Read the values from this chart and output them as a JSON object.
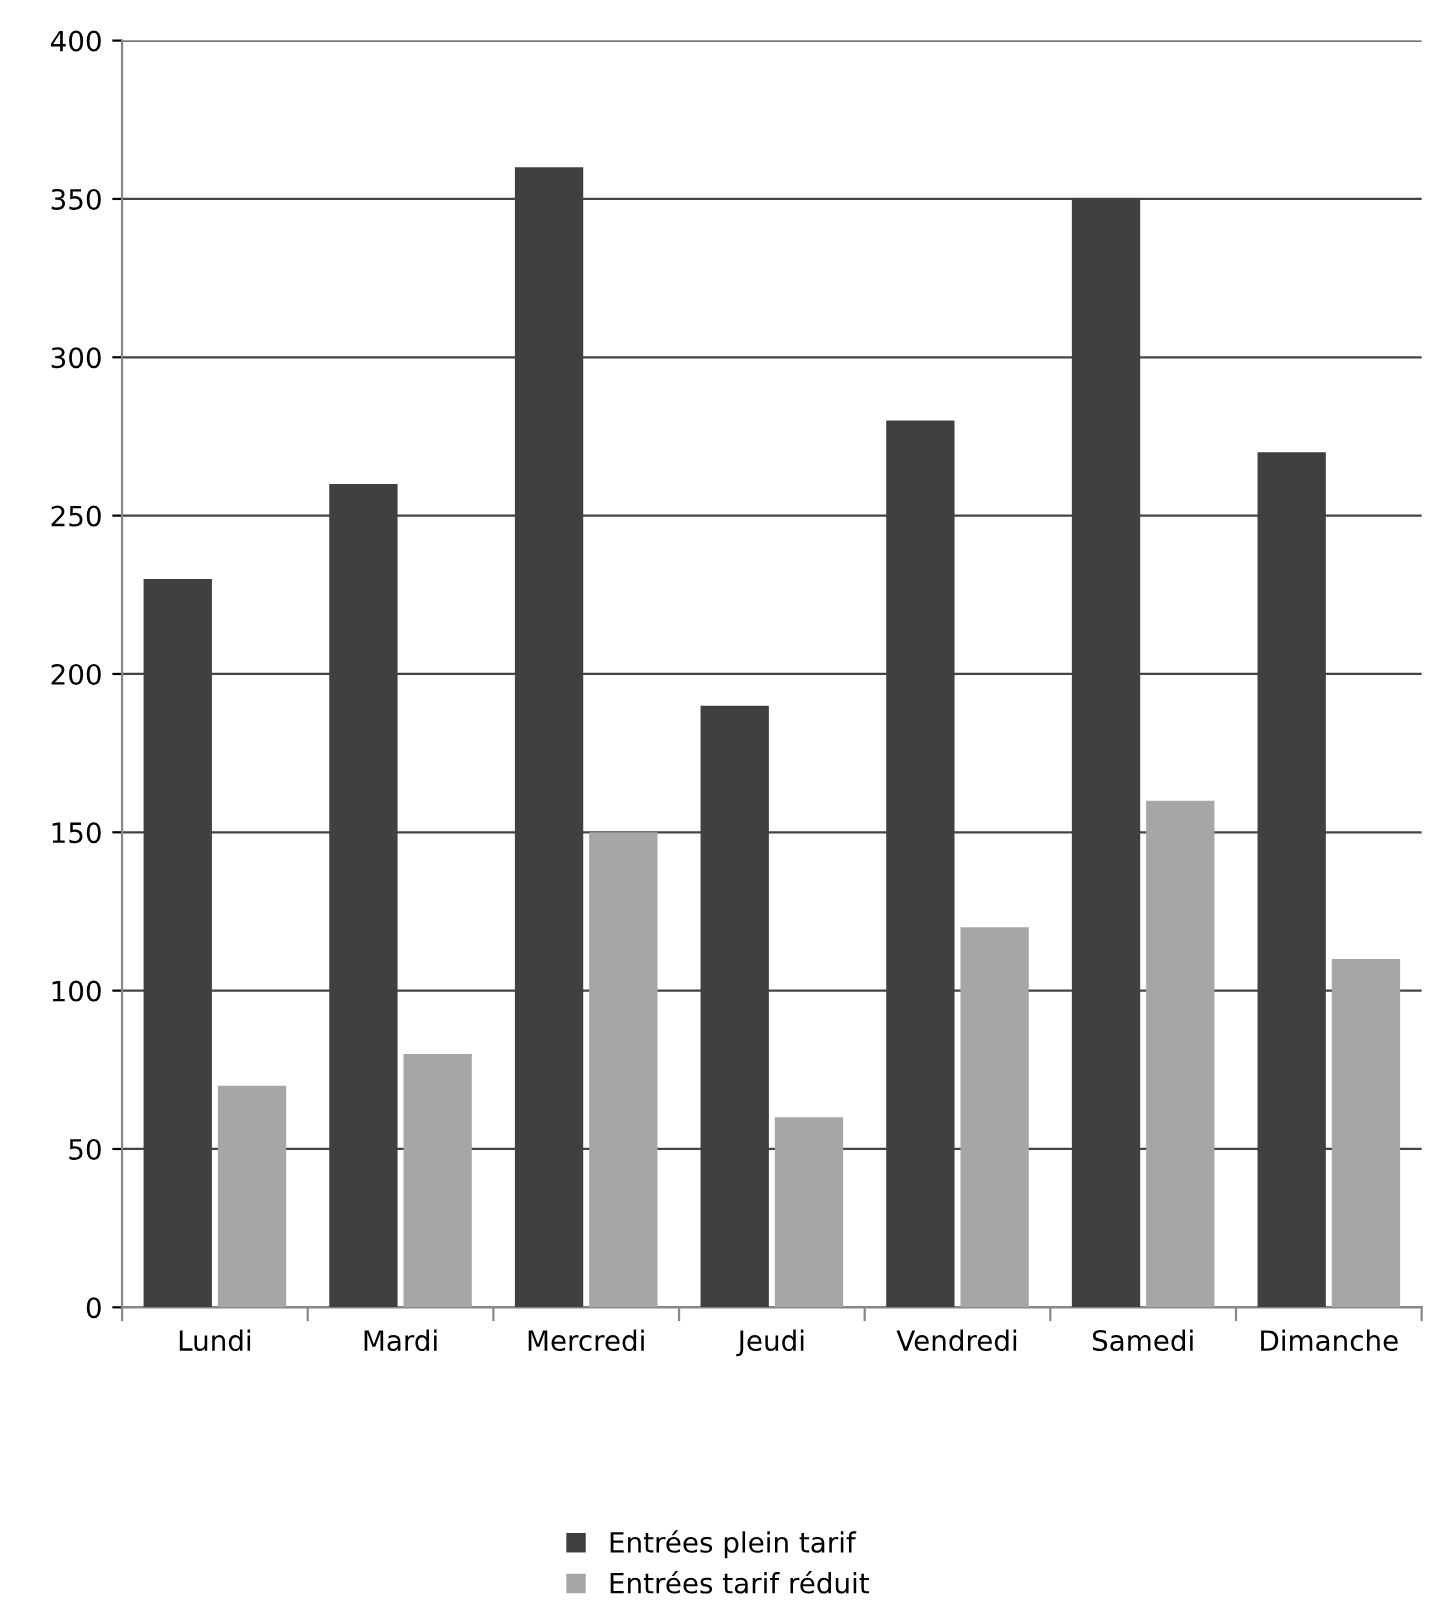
{
  "chart_data": {
    "type": "bar",
    "categories": [
      "Lundi",
      "Mardi",
      "Mercredi",
      "Jeudi",
      "Vendredi",
      "Samedi",
      "Dimanche"
    ],
    "series": [
      {
        "name": "Entrées plein tarif",
        "color": "#404040",
        "values": [
          230,
          260,
          360,
          190,
          280,
          350,
          270
        ]
      },
      {
        "name": "Entrées tarif réduit",
        "color": "#a6a6a6",
        "values": [
          70,
          80,
          150,
          60,
          120,
          160,
          110
        ]
      }
    ],
    "ylim": [
      0,
      400
    ],
    "yticks": [
      0,
      50,
      100,
      150,
      200,
      250,
      300,
      350,
      400
    ],
    "grid": "y",
    "legend": "bottom"
  }
}
